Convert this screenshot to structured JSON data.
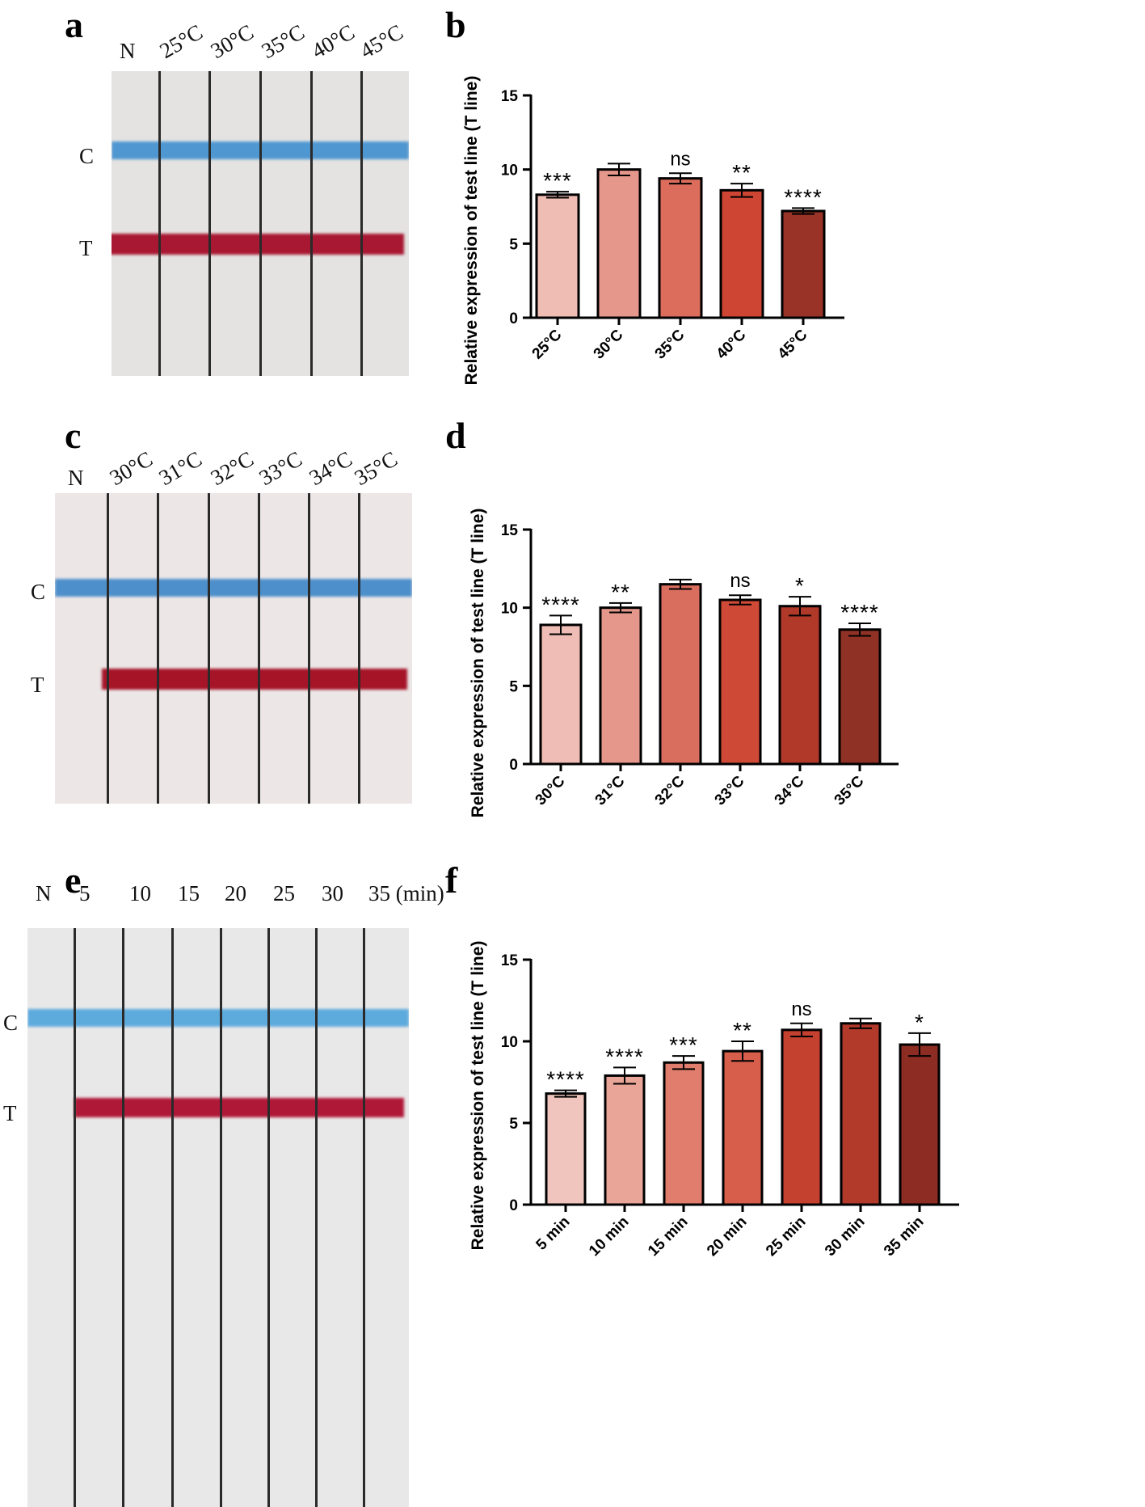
{
  "panels": {
    "a": "a",
    "b": "b",
    "c": "c",
    "d": "d",
    "e": "e",
    "f": "f"
  },
  "strips": [
    {
      "id": "a",
      "band_labels": {
        "control": "C",
        "test": "T"
      },
      "lanes": [
        "N",
        "25°C",
        "30°C",
        "35°C",
        "40°C",
        "45°C"
      ],
      "background": "#e4e3e1",
      "control_color": "#3e8fd0",
      "test_color": "#a81832"
    },
    {
      "id": "c",
      "band_labels": {
        "control": "C",
        "test": "T"
      },
      "lanes": [
        "N",
        "30°C",
        "31°C",
        "32°C",
        "33°C",
        "34°C",
        "35°C"
      ],
      "background": "#ece6e6",
      "control_color": "#3b86c8",
      "test_color": "#a61428"
    },
    {
      "id": "e",
      "band_labels": {
        "control": "C",
        "test": "T"
      },
      "lanes": [
        "N",
        "5",
        "10",
        "15",
        "20",
        "25",
        "30",
        "35 (min)"
      ],
      "background": "#e9e8e8",
      "control_color": "#4ea4dc",
      "test_color": "#b01838"
    }
  ],
  "chart_data": [
    {
      "id": "b",
      "type": "bar",
      "ylabel": "Relative expression of test line (T line)",
      "ylim": [
        0,
        15
      ],
      "yticks": [
        "0",
        "5",
        "10",
        "15"
      ],
      "categories": [
        "25°C",
        "30°C",
        "35°C",
        "40°C",
        "45°C"
      ],
      "values": [
        8.3,
        10.0,
        9.4,
        8.6,
        7.2
      ],
      "errors": [
        0.2,
        0.4,
        0.35,
        0.45,
        0.2
      ],
      "significance": [
        "***",
        "",
        "ns",
        "**",
        "****"
      ],
      "colors": [
        "#efbdb4",
        "#e6978b",
        "#dc6d5c",
        "#cf4533",
        "#9a3327"
      ]
    },
    {
      "id": "d",
      "type": "bar",
      "ylabel": "Relative expression of test line (T line)",
      "ylim": [
        0,
        15
      ],
      "yticks": [
        "0",
        "5",
        "10",
        "15"
      ],
      "categories": [
        "30°C",
        "31°C",
        "32°C",
        "33°C",
        "34°C",
        "35°C"
      ],
      "values": [
        8.9,
        10.0,
        11.5,
        10.5,
        10.1,
        8.6
      ],
      "errors": [
        0.6,
        0.3,
        0.3,
        0.3,
        0.6,
        0.4
      ],
      "significance": [
        "****",
        "**",
        "",
        "ns",
        "*",
        "****"
      ],
      "colors": [
        "#efbdb5",
        "#e5978c",
        "#da6e5e",
        "#cf4a36",
        "#b1392a",
        "#8f3124"
      ]
    },
    {
      "id": "f",
      "type": "bar",
      "ylabel": "Relative expression of test line (T line)",
      "ylim": [
        0,
        15
      ],
      "yticks": [
        "0",
        "5",
        "10",
        "15"
      ],
      "categories": [
        "5 min",
        "10 min",
        "15 min",
        "20 min",
        "25 min",
        "30 min",
        "35 min"
      ],
      "values": [
        6.8,
        7.9,
        8.7,
        9.4,
        10.7,
        11.1,
        9.8
      ],
      "errors": [
        0.2,
        0.5,
        0.4,
        0.6,
        0.4,
        0.3,
        0.7
      ],
      "significance": [
        "****",
        "****",
        "***",
        "**",
        "ns",
        "",
        "*"
      ],
      "colors": [
        "#f0c5bd",
        "#e9a597",
        "#e07d6c",
        "#d65e4a",
        "#c4402f",
        "#b13a2b",
        "#8c2c22"
      ]
    }
  ]
}
